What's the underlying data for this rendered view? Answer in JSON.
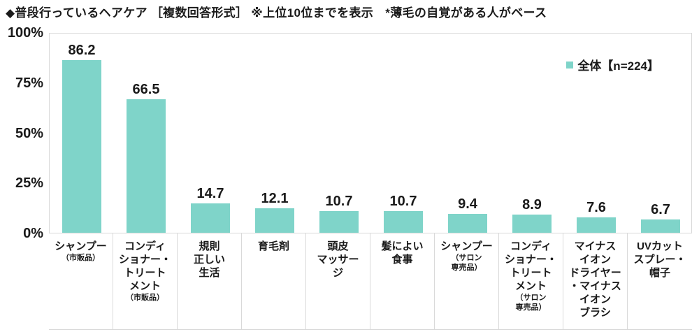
{
  "title": "◆普段行っているヘアケア ［複数回答形式］ ※上位10位までを表示　*薄毛の自覚がある人がベース",
  "legend": {
    "label": "全体【n=224】"
  },
  "colors": {
    "bar": "#7FD4C9",
    "grid": "#D9D9D9",
    "text": "#1A1A1A"
  },
  "chart_data": {
    "type": "bar",
    "title": "普段行っているヘアケア ［複数回答形式］ ※上位10位までを表示 *薄毛の自覚がある人がベース",
    "series_name": "全体【n=224】",
    "categories": [
      "シャンプー（市販品）",
      "コンディショナー・トリートメント（市販品）",
      "規則正しい生活",
      "育毛剤",
      "頭皮マッサージ",
      "髪によい食事",
      "シャンプー（サロン専売品）",
      "コンディショナー・トリートメント（サロン専売品）",
      "マイナスイオンドライヤー・マイナスイオンブラシ",
      "UVカットスプレー・帽子"
    ],
    "values": [
      86.2,
      66.5,
      14.7,
      12.1,
      10.7,
      10.7,
      9.4,
      8.9,
      7.6,
      6.7
    ],
    "xlabel": "",
    "ylabel": "",
    "ylim": [
      0,
      100
    ],
    "y_ticks": [
      "100%",
      "75%",
      "50%",
      "25%",
      "0%"
    ],
    "grid": false,
    "legend_position": "top-right",
    "category_label_lines": [
      {
        "main": [
          "シャンプー"
        ],
        "sub": [
          "（市販品）"
        ]
      },
      {
        "main": [
          "コンディ",
          "ショナー・",
          "トリート",
          "メント"
        ],
        "sub": [
          "（市販品）"
        ]
      },
      {
        "main": [
          "規則",
          "正しい",
          "生活"
        ],
        "sub": []
      },
      {
        "main": [
          "育毛剤"
        ],
        "sub": []
      },
      {
        "main": [
          "頭皮",
          "マッサー",
          "ジ"
        ],
        "sub": []
      },
      {
        "main": [
          "髪によい",
          "食事"
        ],
        "sub": []
      },
      {
        "main": [
          "シャンプー"
        ],
        "sub": [
          "（サロン",
          "専売品）"
        ]
      },
      {
        "main": [
          "コンディ",
          "ショナー・",
          "トリート",
          "メント"
        ],
        "sub": [
          "（サロン",
          "専売品）"
        ]
      },
      {
        "main": [
          "マイナス",
          "イオン",
          "ドライヤー",
          "・マイナス",
          "イオン",
          "ブラシ"
        ],
        "sub": []
      },
      {
        "main": [
          "UVカット",
          "スプレー・",
          "帽子"
        ],
        "sub": []
      }
    ]
  }
}
